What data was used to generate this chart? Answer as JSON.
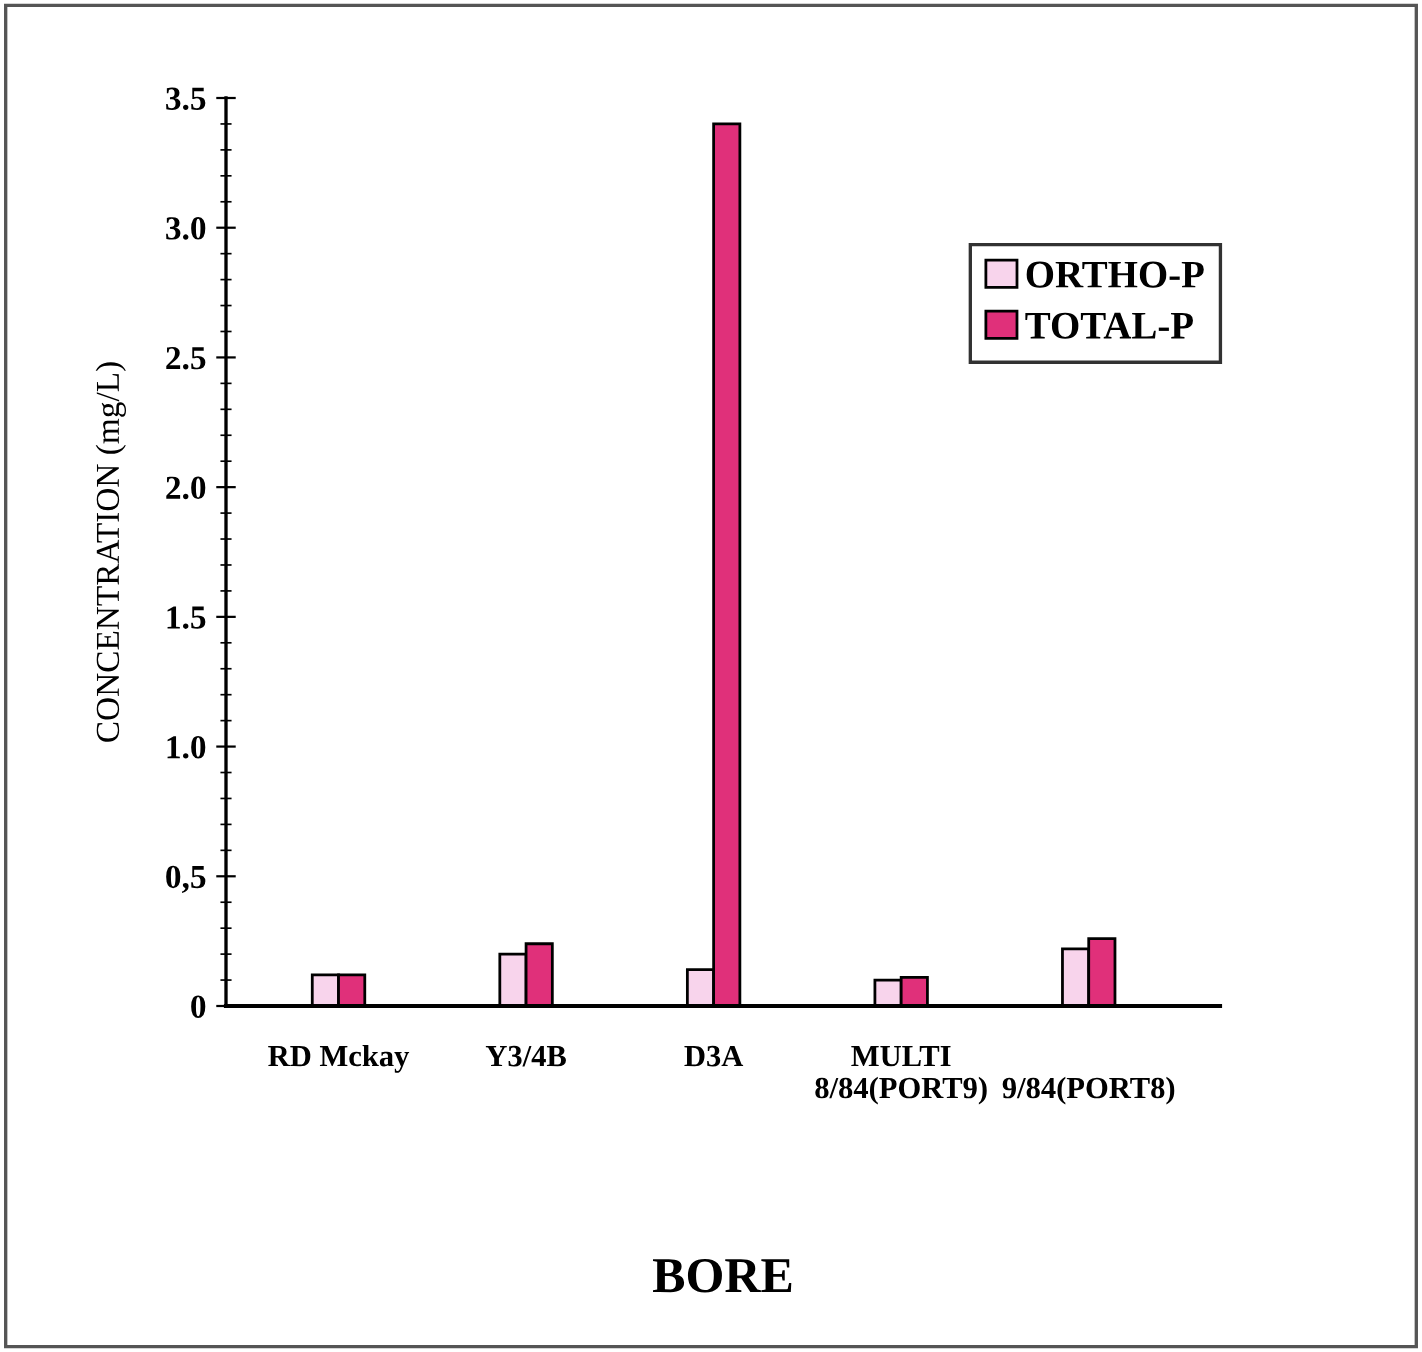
{
  "chart_data": {
    "type": "bar",
    "xlabel": "BORE",
    "ylabel": "CONCENTRATION (mg/L)",
    "categories": [
      "RD Mckay",
      "Y3/4B",
      "D3A",
      "MULTI\n8/84(PORT9)",
      "\n9/84(PORT8)"
    ],
    "series": [
      {
        "name": "ORTHO-P",
        "color": "#f8d4ec",
        "values": [
          0.12,
          0.2,
          0.14,
          0.1,
          0.22
        ]
      },
      {
        "name": "TOTAL-P",
        "color": "#e0307a",
        "values": [
          0.12,
          0.24,
          3.4,
          0.11,
          0.26
        ]
      }
    ],
    "ylim": [
      0,
      3.5
    ],
    "yticks": [
      0,
      {
        "value": 0.5,
        "label": "0,5"
      },
      {
        "value": 1.0,
        "label": "1.0"
      },
      {
        "value": 1.5,
        "label": "1.5"
      },
      {
        "value": 2.0,
        "label": "2.0"
      },
      {
        "value": 2.5,
        "label": "2.5"
      },
      {
        "value": 3.0,
        "label": "3.0"
      },
      {
        "value": 3.5,
        "label": "3.5"
      }
    ],
    "grid": false,
    "legend": "top right"
  }
}
